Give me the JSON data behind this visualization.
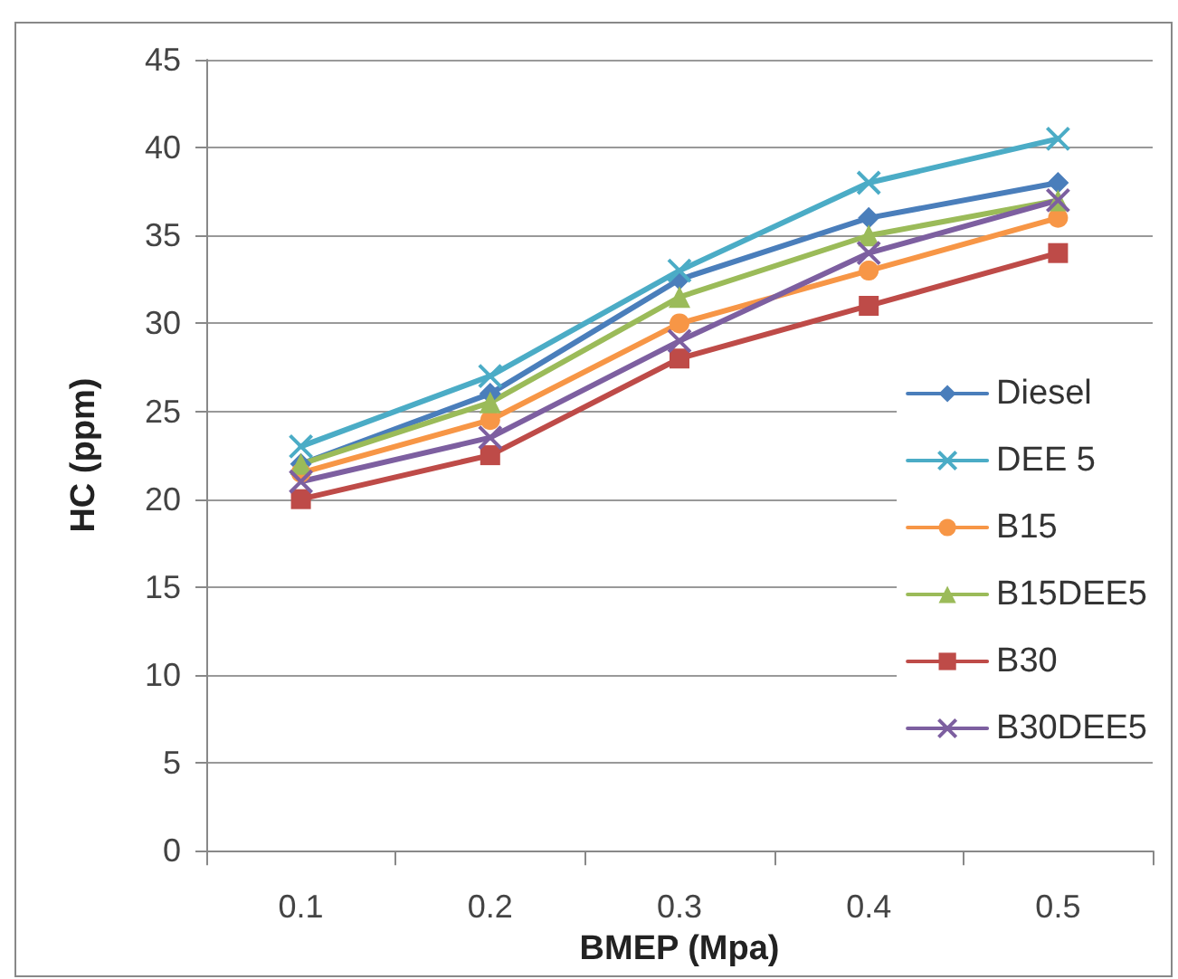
{
  "chart_data": {
    "type": "line",
    "xlabel": "BMEP (Mpa)",
    "ylabel": "HC (ppm)",
    "categories": [
      "0.1",
      "0.2",
      "0.3",
      "0.4",
      "0.5"
    ],
    "series": [
      {
        "name": "Diesel",
        "color": "#4a7ebb",
        "marker": "diamond",
        "values": [
          22,
          26,
          32.5,
          36,
          38
        ]
      },
      {
        "name": "DEE 5",
        "color": "#4bacc6",
        "marker": "cross",
        "values": [
          23,
          27,
          33,
          38,
          40.5
        ]
      },
      {
        "name": "B15",
        "color": "#f79646",
        "marker": "circle",
        "values": [
          21.5,
          24.5,
          30,
          33,
          36
        ]
      },
      {
        "name": "B15DEE5",
        "color": "#9bbb59",
        "marker": "triangle",
        "values": [
          22,
          25.5,
          31.5,
          35,
          37
        ]
      },
      {
        "name": "B30",
        "color": "#be4b48",
        "marker": "square",
        "values": [
          20,
          22.5,
          28,
          31,
          34
        ]
      },
      {
        "name": "B30DEE5",
        "color": "#7d5fa0",
        "marker": "cross",
        "values": [
          21,
          23.5,
          29,
          34,
          37
        ]
      }
    ],
    "ylim": [
      0,
      45
    ],
    "yticks": [
      0,
      5,
      10,
      15,
      20,
      25,
      30,
      35,
      40,
      45
    ],
    "grid": "y",
    "legend": "right",
    "line_style": "solid"
  }
}
